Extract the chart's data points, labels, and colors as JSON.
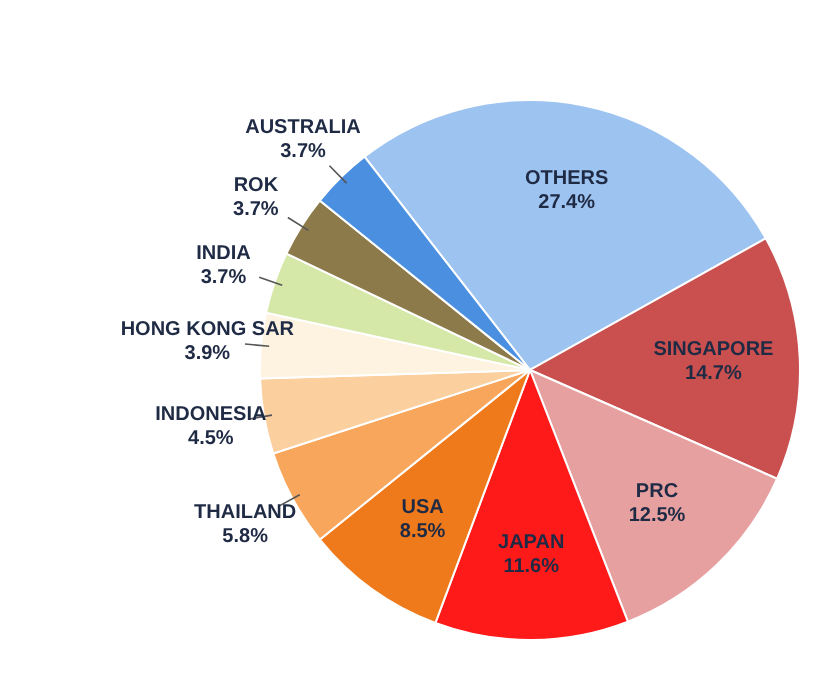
{
  "chart_data": {
    "type": "pie",
    "categories": [
      "OTHERS",
      "SINGAPORE",
      "PRC",
      "JAPAN",
      "USA",
      "THAILAND",
      "INDONESIA",
      "HONG KONG SAR",
      "INDIA",
      "ROK",
      "AUSTRALIA"
    ],
    "values": [
      27.4,
      14.7,
      12.5,
      11.6,
      8.5,
      5.8,
      4.5,
      3.9,
      3.7,
      3.7,
      3.7
    ],
    "value_labels": [
      "27.4%",
      "14.7%",
      "12.5%",
      "11.6%",
      "8.5%",
      "5.8%",
      "4.5%",
      "3.9%",
      "3.7%",
      "3.7%",
      "3.7%"
    ],
    "colors": [
      "#9dc3f0",
      "#c9504f",
      "#e6a0a0",
      "#ff1a1a",
      "#ef7a1c",
      "#f8a65c",
      "#fbcf9e",
      "#fdf3e0",
      "#d6e8a8",
      "#8c7a4a",
      "#4a8fe0"
    ]
  }
}
